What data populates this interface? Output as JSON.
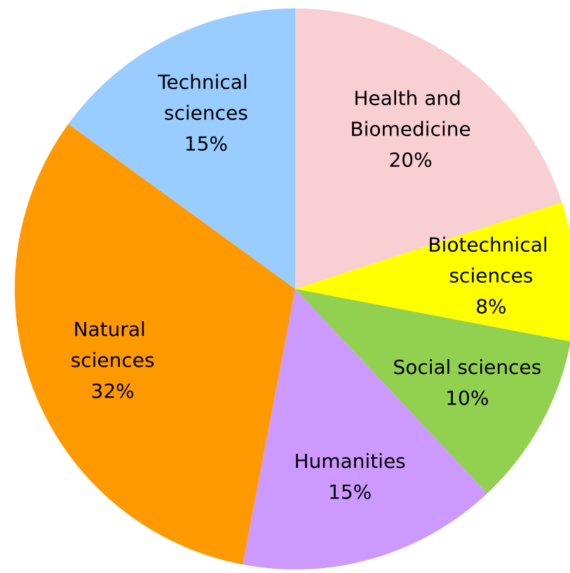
{
  "chart_data": {
    "type": "pie",
    "categories": [
      "Health and Biomedicine",
      "Biotechnical sciences",
      "Social sciences",
      "Humanities",
      "Natural sciences",
      "Technical sciences"
    ],
    "values": [
      20,
      8,
      10,
      15,
      32,
      15
    ],
    "value_labels": [
      "20%",
      "8%",
      "10%",
      "15%",
      "32%",
      "15%"
    ],
    "colors": [
      "#f8cfd3",
      "#ffff00",
      "#92d050",
      "#cc99ff",
      "#ff9900",
      "#99ccff"
    ]
  }
}
